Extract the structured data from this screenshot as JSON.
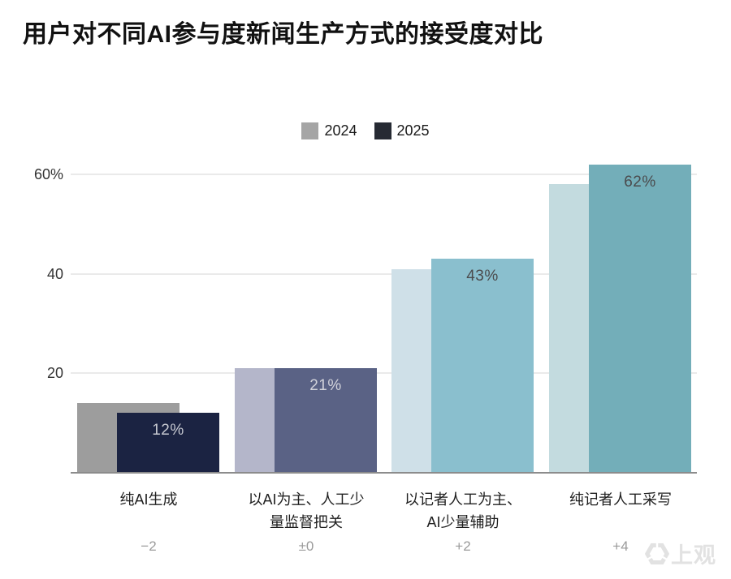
{
  "title": "用户对不同AI参与度新闻生产方式的接受度对比",
  "legend": {
    "items": [
      {
        "label": "2024",
        "color": "#a5a5a5"
      },
      {
        "label": "2025",
        "color": "#262a33"
      }
    ]
  },
  "y_axis": {
    "ticks": [
      {
        "label": "60%",
        "value": 60
      },
      {
        "label": "40",
        "value": 40
      },
      {
        "label": "20",
        "value": 20
      }
    ]
  },
  "chart_data": {
    "type": "bar",
    "title": "用户对不同AI参与度新闻生产方式的接受度对比",
    "categories": [
      "纯AI生成",
      "以AI为主、人工少量监督把关",
      "以记者人工为主、AI少量辅助",
      "纯记者人工采写"
    ],
    "series": [
      {
        "name": "2024",
        "values": [
          14,
          21,
          41,
          58
        ]
      },
      {
        "name": "2025",
        "values": [
          12,
          21,
          43,
          62
        ]
      }
    ],
    "bar_labels": [
      "12%",
      "21%",
      "43%",
      "62%"
    ],
    "deltas": [
      "−2",
      "±0",
      "+2",
      "+4"
    ],
    "xlabel": "",
    "ylabel": "",
    "ylim": [
      0,
      64
    ],
    "grid": true,
    "legend_position": "top-center"
  },
  "groups": [
    {
      "category_display": "纯AI生成",
      "v2024": 14,
      "v2025": 12,
      "bar_label": "12%",
      "delta": "−2",
      "color_2024": "#9d9d9d",
      "color_2025": "#1b2342",
      "label_color": "#c7c9d1"
    },
    {
      "category_display": "以AI为主、人工少\n量监督把关",
      "v2024": 21,
      "v2025": 21,
      "bar_label": "21%",
      "delta": "±0",
      "color_2024": "#b4b6ca",
      "color_2025": "#5a6285",
      "label_color": "#d2d3db"
    },
    {
      "category_display": "以记者人工为主、\nAI少量辅助",
      "v2024": 41,
      "v2025": 43,
      "bar_label": "43%",
      "delta": "+2",
      "color_2024": "#cfe0e8",
      "color_2025": "#8abfce",
      "label_color": "#4b4b4d"
    },
    {
      "category_display": "纯记者人工采写",
      "v2024": 58,
      "v2025": 62,
      "bar_label": "62%",
      "delta": "+4",
      "color_2024": "#c3dbdf",
      "color_2025": "#73aeb9",
      "label_color": "#4b4b4d"
    }
  ],
  "watermark": {
    "text": "上观"
  }
}
